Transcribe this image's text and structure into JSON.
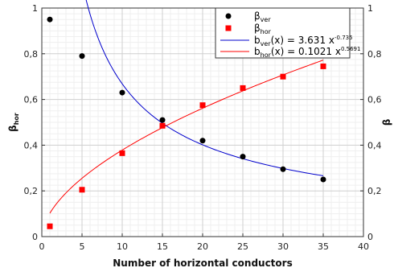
{
  "chart_data": {
    "type": "scatter",
    "xlabel": "Number of horizontal conductors",
    "ylabel_left": {
      "base": "β",
      "sub": "hor"
    },
    "ylabel_right": "β",
    "xlim": [
      0,
      40
    ],
    "ylim": [
      0,
      1
    ],
    "x_ticks": [
      0,
      5,
      10,
      15,
      20,
      25,
      30,
      35,
      40
    ],
    "y_ticks": [
      0,
      0.2,
      0.4,
      0.6,
      0.8,
      1
    ],
    "x_tick_labels": [
      "0",
      "5",
      "10",
      "15",
      "20",
      "25",
      "30",
      "35",
      "40"
    ],
    "y_tick_labels": [
      "0",
      "0,2",
      "0,4",
      "0,6",
      "0,8",
      "1"
    ],
    "grid": true,
    "legend_position": "top-right",
    "series": [
      {
        "name": {
          "base": "β",
          "sub": "ver"
        },
        "marker": "circle",
        "color": "#000000",
        "x": [
          1,
          5,
          10,
          15,
          20,
          25,
          30,
          35
        ],
        "y": [
          0.95,
          0.79,
          0.63,
          0.51,
          0.42,
          0.35,
          0.295,
          0.25
        ]
      },
      {
        "name": {
          "base": "β",
          "sub": "hor"
        },
        "marker": "square",
        "color": "#ff0000",
        "x": [
          1,
          5,
          10,
          15,
          20,
          25,
          30,
          35
        ],
        "y": [
          0.045,
          0.205,
          0.365,
          0.485,
          0.575,
          0.65,
          0.7,
          0.745
        ]
      }
    ],
    "fits": [
      {
        "label": {
          "base": "b",
          "sub": "ver",
          "mid": "(x) = 3.631 x",
          "sup": "-0.735"
        },
        "color": "#0000cc",
        "a": 3.631,
        "b": -0.735
      },
      {
        "label": {
          "base": "b",
          "sub": "hor",
          "mid": "(x) = 0.1021 x",
          "sup": "0.5691"
        },
        "color": "#ff0000",
        "a": 0.1021,
        "b": 0.5691
      }
    ]
  }
}
